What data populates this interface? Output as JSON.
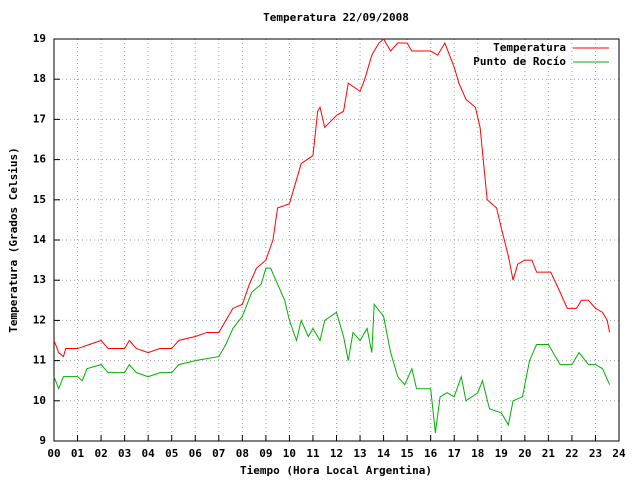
{
  "chart_data": {
    "type": "line",
    "title": "Temperatura 22/09/2008",
    "xlabel": "Tiempo (Hora Local Argentina)",
    "ylabel": "Temperatura (Grados Celsius)",
    "xlim": [
      0,
      24
    ],
    "ylim": [
      9,
      19
    ],
    "xticks": [
      {
        "value": 0,
        "label": "00"
      },
      {
        "value": 1,
        "label": "01"
      },
      {
        "value": 2,
        "label": "02"
      },
      {
        "value": 3,
        "label": "03"
      },
      {
        "value": 4,
        "label": "04"
      },
      {
        "value": 5,
        "label": "05"
      },
      {
        "value": 6,
        "label": "06"
      },
      {
        "value": 7,
        "label": "07"
      },
      {
        "value": 8,
        "label": "08"
      },
      {
        "value": 9,
        "label": "09"
      },
      10,
      11,
      12,
      13,
      14,
      15,
      16,
      17,
      18,
      19,
      20,
      21,
      22,
      23,
      24
    ],
    "yticks": [
      9,
      10,
      11,
      12,
      13,
      14,
      15,
      16,
      17,
      18,
      19
    ],
    "grid": true,
    "legend": "upper right",
    "series": [
      {
        "name": "Temperatura",
        "color": "#ff0000",
        "x": [
          0,
          0.2,
          0.4,
          0.5,
          1,
          1.5,
          2,
          2.3,
          3,
          3.2,
          3.5,
          4,
          4.5,
          5,
          5.3,
          6,
          6.5,
          7,
          7.3,
          7.6,
          8,
          8.3,
          8.6,
          9,
          9.3,
          9.5,
          10,
          10.3,
          10.5,
          11,
          11.2,
          11.3,
          11.5,
          12,
          12.3,
          12.5,
          13,
          13.2,
          13.5,
          13.8,
          14,
          14.3,
          14.6,
          15,
          15.2,
          16,
          16.3,
          16.6,
          17,
          17.2,
          17.5,
          17.9,
          18.1,
          18.4,
          18.8,
          19,
          19.3,
          19.5,
          19.7,
          20,
          20.3,
          20.5,
          21.1,
          21.5,
          21.8,
          22.2,
          22.4,
          22.7,
          23,
          23.3,
          23.5,
          23.6
        ],
        "values": [
          11.5,
          11.2,
          11.1,
          11.3,
          11.3,
          11.4,
          11.5,
          11.3,
          11.3,
          11.5,
          11.3,
          11.2,
          11.3,
          11.3,
          11.5,
          11.6,
          11.7,
          11.7,
          12.0,
          12.3,
          12.4,
          12.9,
          13.3,
          13.5,
          14.0,
          14.8,
          14.9,
          15.5,
          15.9,
          16.1,
          17.2,
          17.3,
          16.8,
          17.1,
          17.2,
          17.9,
          17.7,
          18.0,
          18.6,
          18.9,
          19.0,
          18.7,
          18.9,
          18.9,
          18.7,
          18.7,
          18.6,
          18.9,
          18.3,
          17.9,
          17.5,
          17.3,
          16.8,
          15.0,
          14.8,
          14.3,
          13.6,
          13.0,
          13.4,
          13.5,
          13.5,
          13.2,
          13.2,
          12.7,
          12.3,
          12.3,
          12.5,
          12.5,
          12.3,
          12.2,
          12.0,
          11.7
        ]
      },
      {
        "name": "Punto de Rocío",
        "color": "#00b000",
        "x": [
          0,
          0.2,
          0.4,
          1,
          1.2,
          1.4,
          2,
          2.3,
          3,
          3.2,
          3.5,
          4,
          4.5,
          5,
          5.3,
          6,
          7,
          7.3,
          7.6,
          8,
          8.4,
          8.8,
          9,
          9.2,
          9.5,
          9.8,
          10,
          10.3,
          10.5,
          10.8,
          11,
          11.3,
          11.5,
          12,
          12.3,
          12.5,
          12.7,
          13,
          13.3,
          13.5,
          13.6,
          14,
          14.3,
          14.6,
          14.9,
          15.2,
          15.4,
          16,
          16.2,
          16.4,
          16.7,
          17,
          17.3,
          17.5,
          18,
          18.2,
          18.5,
          19,
          19.3,
          19.5,
          19.9,
          20.2,
          20.5,
          21,
          21.3,
          21.5,
          22,
          22.3,
          22.7,
          23,
          23.3,
          23.6
        ],
        "values": [
          10.6,
          10.3,
          10.6,
          10.6,
          10.5,
          10.8,
          10.9,
          10.7,
          10.7,
          10.9,
          10.7,
          10.6,
          10.7,
          10.7,
          10.9,
          11.0,
          11.1,
          11.4,
          11.8,
          12.1,
          12.7,
          12.9,
          13.3,
          13.3,
          12.9,
          12.5,
          12.0,
          11.5,
          12.0,
          11.6,
          11.8,
          11.5,
          12.0,
          12.2,
          11.6,
          11.0,
          11.7,
          11.5,
          11.8,
          11.2,
          12.4,
          12.1,
          11.2,
          10.6,
          10.4,
          10.8,
          10.3,
          10.3,
          9.2,
          10.1,
          10.2,
          10.1,
          10.6,
          10.0,
          10.2,
          10.5,
          9.8,
          9.7,
          9.4,
          10.0,
          10.1,
          11.0,
          11.4,
          11.4,
          11.1,
          10.9,
          10.9,
          11.2,
          10.9,
          10.9,
          10.8,
          10.4
        ]
      }
    ]
  }
}
